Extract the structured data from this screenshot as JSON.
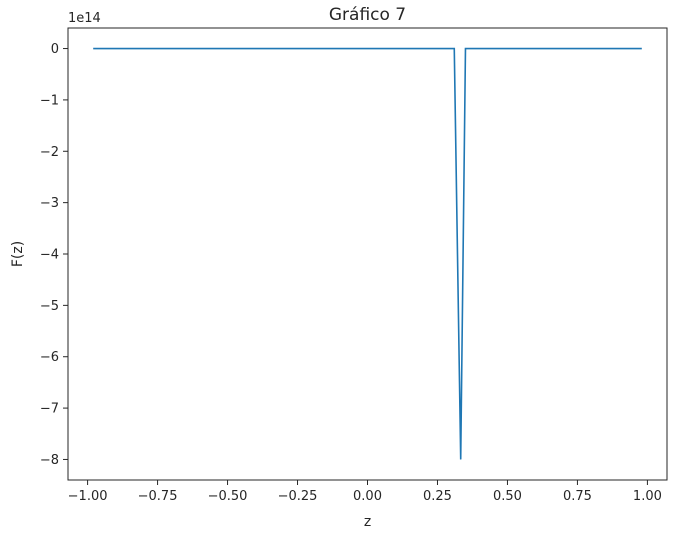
{
  "chart_data": {
    "type": "line",
    "title": "Gráfico 7",
    "xlabel": "z",
    "ylabel": "F(z)",
    "y_offset_label": "1e14",
    "y_scale": 100000000000000.0,
    "xlim": [
      -1.07,
      1.07
    ],
    "ylim": [
      -8.4,
      0.4
    ],
    "x_ticks": [
      -1.0,
      -0.75,
      -0.5,
      -0.25,
      0.0,
      0.25,
      0.5,
      0.75,
      1.0
    ],
    "x_tick_labels": [
      "−1.00",
      "−0.75",
      "−0.50",
      "−0.25",
      "0.00",
      "0.25",
      "0.50",
      "0.75",
      "1.00"
    ],
    "y_ticks": [
      0,
      -1,
      -2,
      -3,
      -4,
      -5,
      -6,
      -7,
      -8
    ],
    "y_tick_labels": [
      "0",
      "−1",
      "−2",
      "−3",
      "−4",
      "−5",
      "−6",
      "−7",
      "−8"
    ],
    "grid": false,
    "series": [
      {
        "color": "#1f77b4",
        "x": [
          -0.98,
          0.31,
          0.333,
          0.35,
          0.98
        ],
        "y": [
          0.0,
          0.0,
          -8.0,
          0.0,
          0.0
        ]
      }
    ]
  }
}
